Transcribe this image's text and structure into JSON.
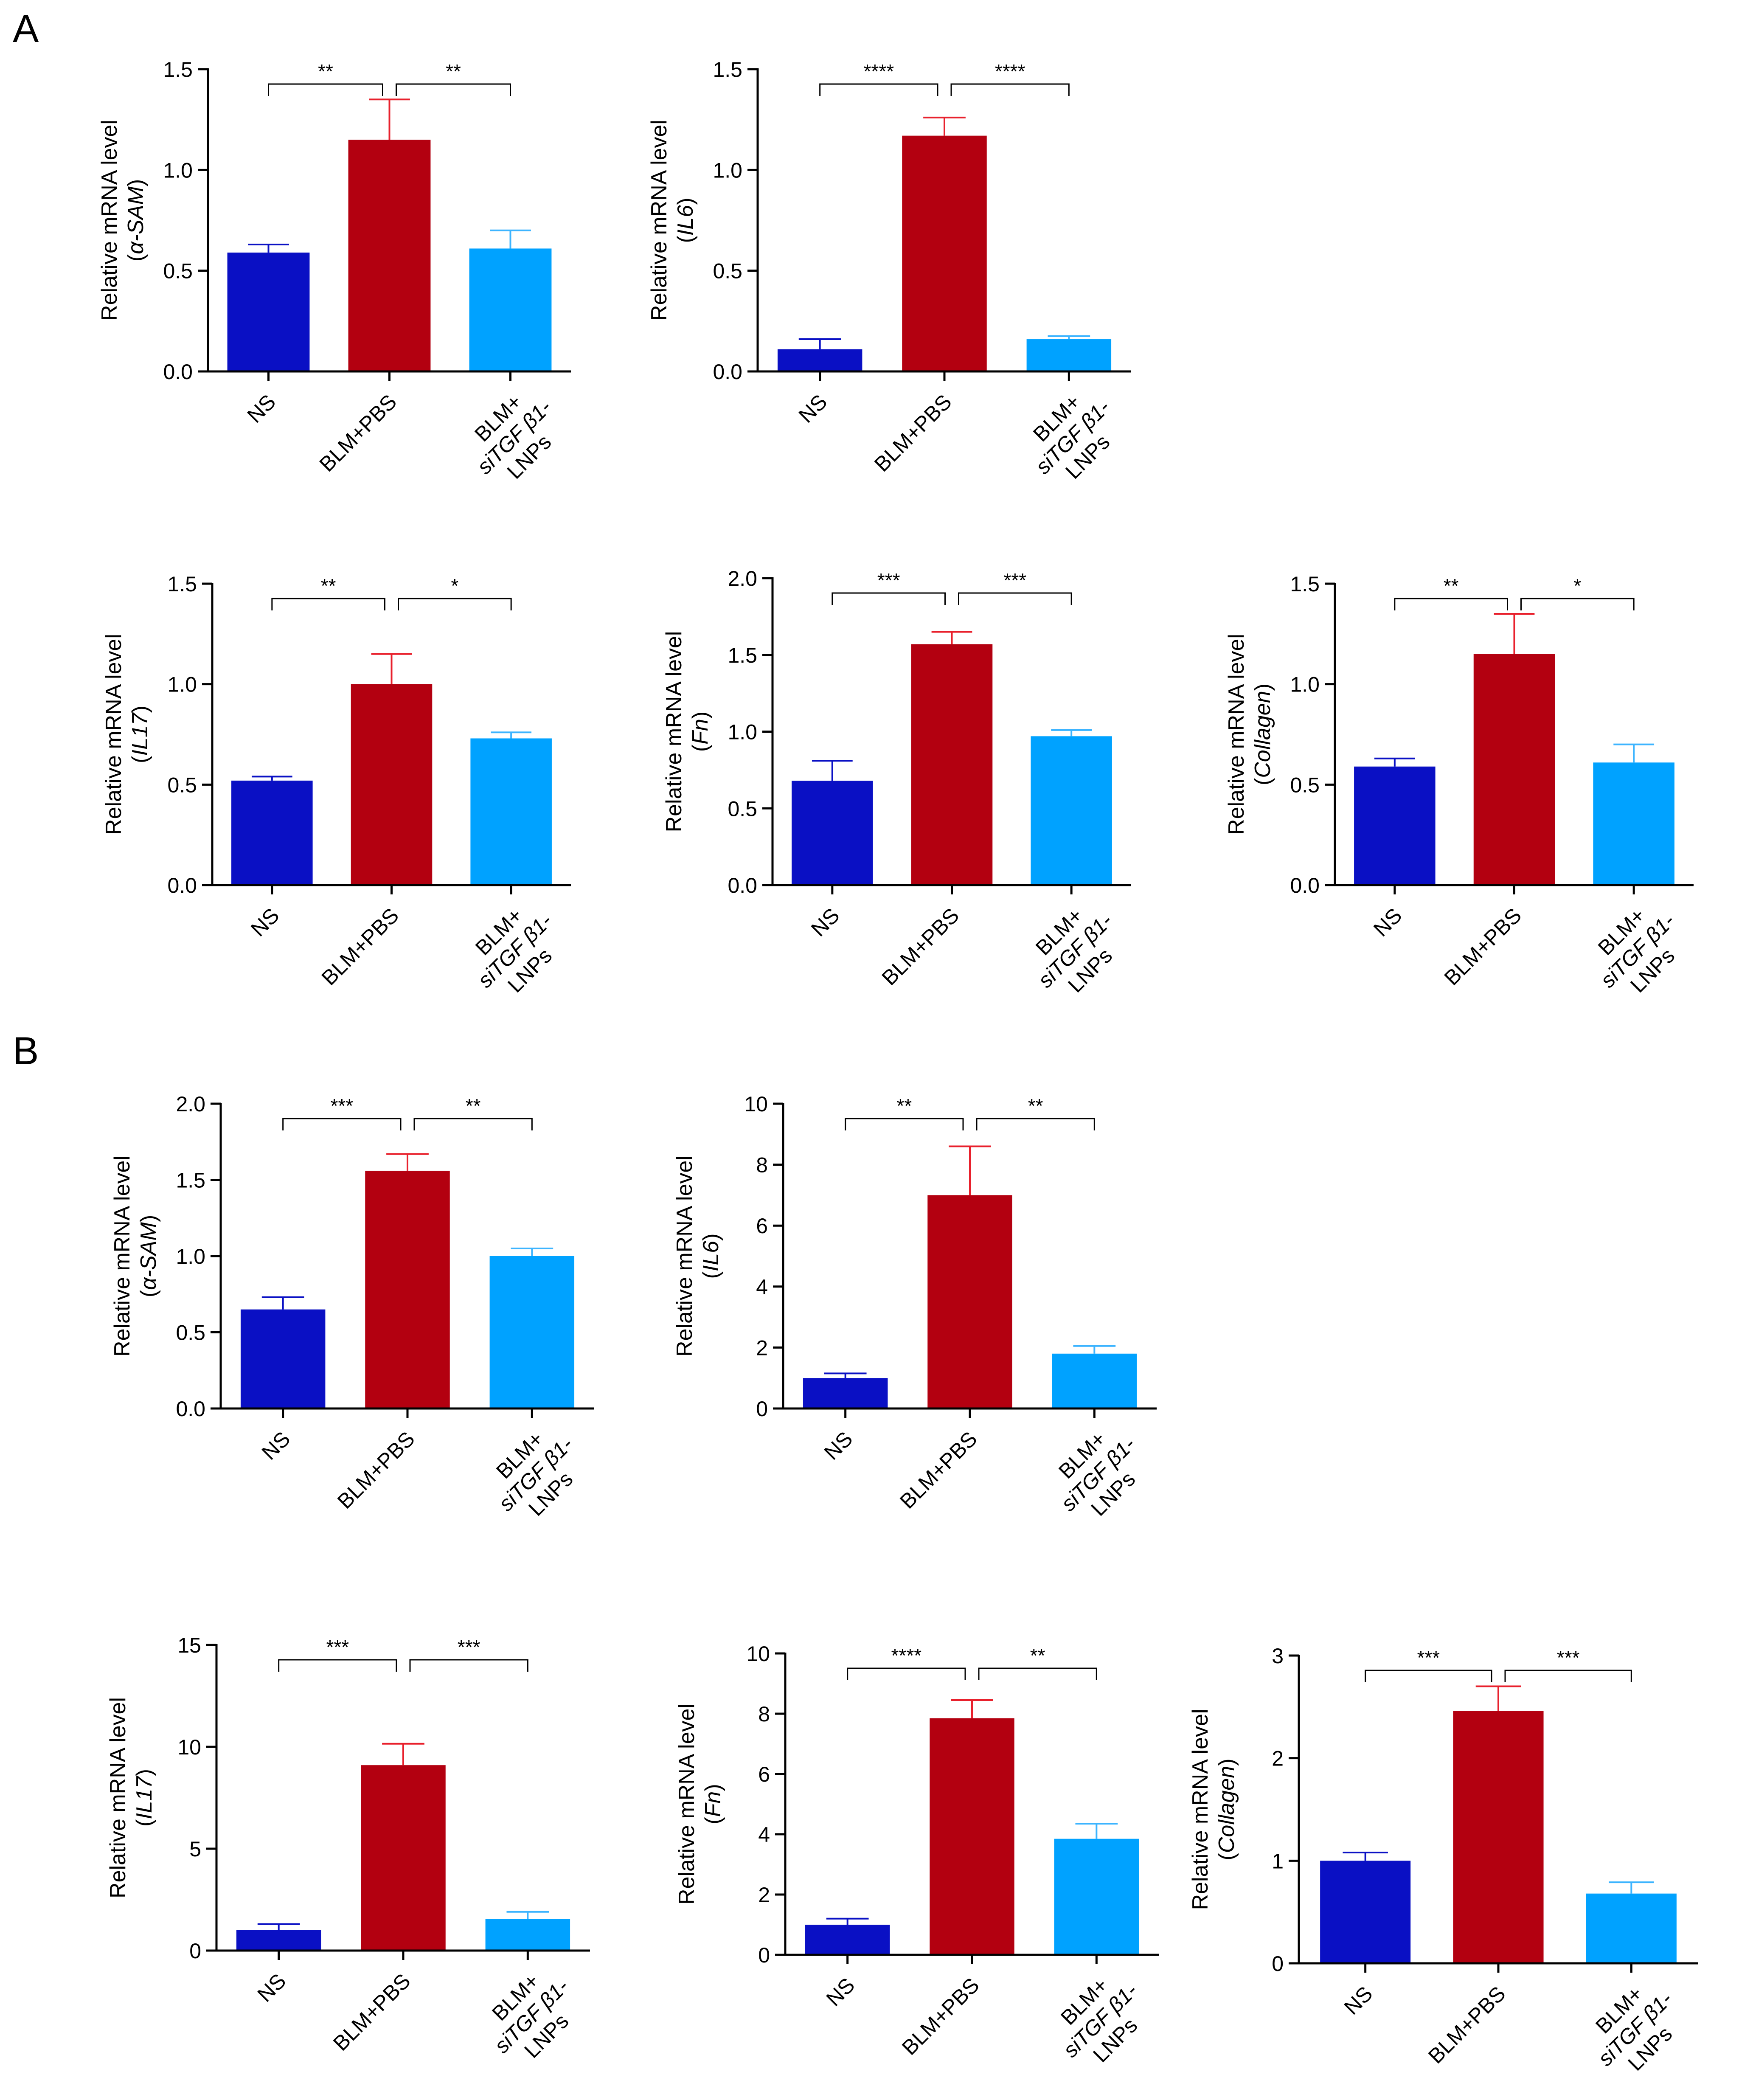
{
  "panels": {
    "A": {
      "label": "A"
    },
    "B": {
      "label": "B"
    }
  },
  "groups": {
    "ns": "NS",
    "blm_pbs": "BLM+PBS",
    "blm_si_line1": "BLM+",
    "blm_si_line2": "siTGF β1-",
    "blm_si_line3": "LNPs"
  },
  "colors": {
    "ns": "#0a10c4",
    "blm_pbs": "#b30010",
    "blm_si": "#00a2ff",
    "ns_error": "#0a10c4",
    "blm_pbs_error": "#e8202c",
    "blm_si_error": "#3cb4ff",
    "axis": "#000000"
  },
  "chart_data": [
    {
      "id": "A1",
      "panel": "A",
      "type": "bar",
      "ylabel": "Relative mRNA level",
      "gene": "α-SAM",
      "ylim": [
        0,
        1.5
      ],
      "yticks": [
        "0.0",
        "0.5",
        "1.0",
        "1.5"
      ],
      "ytick_values": [
        0,
        0.5,
        1.0,
        1.5
      ],
      "categories": [
        "NS",
        "BLM+PBS",
        "BLM+siTGF β1-LNPs"
      ],
      "values": [
        0.59,
        1.15,
        0.61
      ],
      "errors": [
        0.04,
        0.2,
        0.09
      ],
      "significance": [
        {
          "from": 0,
          "to": 1,
          "label": "**"
        },
        {
          "from": 1,
          "to": 2,
          "label": "**"
        }
      ]
    },
    {
      "id": "A2",
      "panel": "A",
      "type": "bar",
      "ylabel": "Relative mRNA level",
      "gene": "IL6",
      "ylim": [
        0,
        1.5
      ],
      "yticks": [
        "0.0",
        "0.5",
        "1.0",
        "1.5"
      ],
      "ytick_values": [
        0,
        0.5,
        1.0,
        1.5
      ],
      "categories": [
        "NS",
        "BLM+PBS",
        "BLM+siTGF β1-LNPs"
      ],
      "values": [
        0.11,
        1.17,
        0.16
      ],
      "errors": [
        0.05,
        0.09,
        0.015
      ],
      "significance": [
        {
          "from": 0,
          "to": 1,
          "label": "****"
        },
        {
          "from": 1,
          "to": 2,
          "label": "****"
        }
      ]
    },
    {
      "id": "A3",
      "panel": "A",
      "type": "bar",
      "ylabel": "Relative mRNA level",
      "gene": "IL17",
      "ylim": [
        0,
        1.5
      ],
      "yticks": [
        "0.0",
        "0.5",
        "1.0",
        "1.5"
      ],
      "ytick_values": [
        0,
        0.5,
        1.0,
        1.5
      ],
      "categories": [
        "NS",
        "BLM+PBS",
        "BLM+siTGF β1-LNPs"
      ],
      "values": [
        0.52,
        1.0,
        0.73
      ],
      "errors": [
        0.02,
        0.15,
        0.03
      ],
      "significance": [
        {
          "from": 0,
          "to": 1,
          "label": "**"
        },
        {
          "from": 1,
          "to": 2,
          "label": "*"
        }
      ]
    },
    {
      "id": "A4",
      "panel": "A",
      "type": "bar",
      "ylabel": "Relative mRNA level",
      "gene": "Fn",
      "ylim": [
        0,
        2.0
      ],
      "yticks": [
        "0.0",
        "0.5",
        "1.0",
        "1.5",
        "2.0"
      ],
      "ytick_values": [
        0,
        0.5,
        1.0,
        1.5,
        2.0
      ],
      "categories": [
        "NS",
        "BLM+PBS",
        "BLM+siTGF β1-LNPs"
      ],
      "values": [
        0.68,
        1.57,
        0.97
      ],
      "errors": [
        0.13,
        0.08,
        0.04
      ],
      "significance": [
        {
          "from": 0,
          "to": 1,
          "label": "***"
        },
        {
          "from": 1,
          "to": 2,
          "label": "***"
        }
      ]
    },
    {
      "id": "A5",
      "panel": "A",
      "type": "bar",
      "ylabel": "Relative mRNA level",
      "gene": "Collagen",
      "ylim": [
        0,
        1.5
      ],
      "yticks": [
        "0.0",
        "0.5",
        "1.0",
        "1.5"
      ],
      "ytick_values": [
        0,
        0.5,
        1.0,
        1.5
      ],
      "categories": [
        "NS",
        "BLM+PBS",
        "BLM+siTGF β1-LNPs"
      ],
      "values": [
        0.59,
        1.15,
        0.61
      ],
      "errors": [
        0.04,
        0.2,
        0.09
      ],
      "significance": [
        {
          "from": 0,
          "to": 1,
          "label": "**"
        },
        {
          "from": 1,
          "to": 2,
          "label": "*"
        }
      ]
    },
    {
      "id": "B1",
      "panel": "B",
      "type": "bar",
      "ylabel": "Relative mRNA level",
      "gene": "α-SAM",
      "ylim": [
        0,
        2.0
      ],
      "yticks": [
        "0.0",
        "0.5",
        "1.0",
        "1.5",
        "2.0"
      ],
      "ytick_values": [
        0,
        0.5,
        1.0,
        1.5,
        2.0
      ],
      "categories": [
        "NS",
        "BLM+PBS",
        "BLM+siTGF β1-LNPs"
      ],
      "values": [
        0.65,
        1.56,
        1.0
      ],
      "errors": [
        0.08,
        0.11,
        0.05
      ],
      "significance": [
        {
          "from": 0,
          "to": 1,
          "label": "***"
        },
        {
          "from": 1,
          "to": 2,
          "label": "**"
        }
      ]
    },
    {
      "id": "B2",
      "panel": "B",
      "type": "bar",
      "ylabel": "Relative mRNA level",
      "gene": "IL6",
      "ylim": [
        0,
        10
      ],
      "yticks": [
        "0",
        "2",
        "4",
        "6",
        "8",
        "10"
      ],
      "ytick_values": [
        0,
        2,
        4,
        6,
        8,
        10
      ],
      "categories": [
        "NS",
        "BLM+PBS",
        "BLM+siTGF β1-LNPs"
      ],
      "values": [
        1.0,
        7.0,
        1.8
      ],
      "errors": [
        0.15,
        1.6,
        0.25
      ],
      "significance": [
        {
          "from": 0,
          "to": 1,
          "label": "**"
        },
        {
          "from": 1,
          "to": 2,
          "label": "**"
        }
      ]
    },
    {
      "id": "B3",
      "panel": "B",
      "type": "bar",
      "ylabel": "Relative mRNA level",
      "gene": "IL17",
      "ylim": [
        0,
        15
      ],
      "yticks": [
        "0",
        "5",
        "10",
        "15"
      ],
      "ytick_values": [
        0,
        5,
        10,
        15
      ],
      "categories": [
        "NS",
        "BLM+PBS",
        "BLM+siTGF β1-LNPs"
      ],
      "values": [
        1.0,
        9.1,
        1.55
      ],
      "errors": [
        0.3,
        1.05,
        0.35
      ],
      "significance": [
        {
          "from": 0,
          "to": 1,
          "label": "***"
        },
        {
          "from": 1,
          "to": 2,
          "label": "***"
        }
      ]
    },
    {
      "id": "B4",
      "panel": "B",
      "type": "bar",
      "ylabel": "Relative mRNA level",
      "gene": "Fn",
      "ylim": [
        0,
        10
      ],
      "yticks": [
        "0",
        "2",
        "4",
        "6",
        "8",
        "10"
      ],
      "ytick_values": [
        0,
        2,
        4,
        6,
        8,
        10
      ],
      "categories": [
        "NS",
        "BLM+PBS",
        "BLM+siTGF β1-LNPs"
      ],
      "values": [
        1.0,
        7.85,
        3.85
      ],
      "errors": [
        0.2,
        0.6,
        0.5
      ],
      "significance": [
        {
          "from": 0,
          "to": 1,
          "label": "****"
        },
        {
          "from": 1,
          "to": 2,
          "label": "**"
        }
      ]
    },
    {
      "id": "B5",
      "panel": "B",
      "type": "bar",
      "ylabel": "Relative mRNA level",
      "gene": "Collagen",
      "ylim": [
        0,
        3
      ],
      "yticks": [
        "0",
        "1",
        "2",
        "3"
      ],
      "ytick_values": [
        0,
        1,
        2,
        3
      ],
      "categories": [
        "NS",
        "BLM+PBS",
        "BLM+siTGF β1-LNPs"
      ],
      "values": [
        1.0,
        2.46,
        0.68
      ],
      "errors": [
        0.08,
        0.24,
        0.11
      ],
      "significance": [
        {
          "from": 0,
          "to": 1,
          "label": "***"
        },
        {
          "from": 1,
          "to": 2,
          "label": "***"
        }
      ]
    }
  ]
}
